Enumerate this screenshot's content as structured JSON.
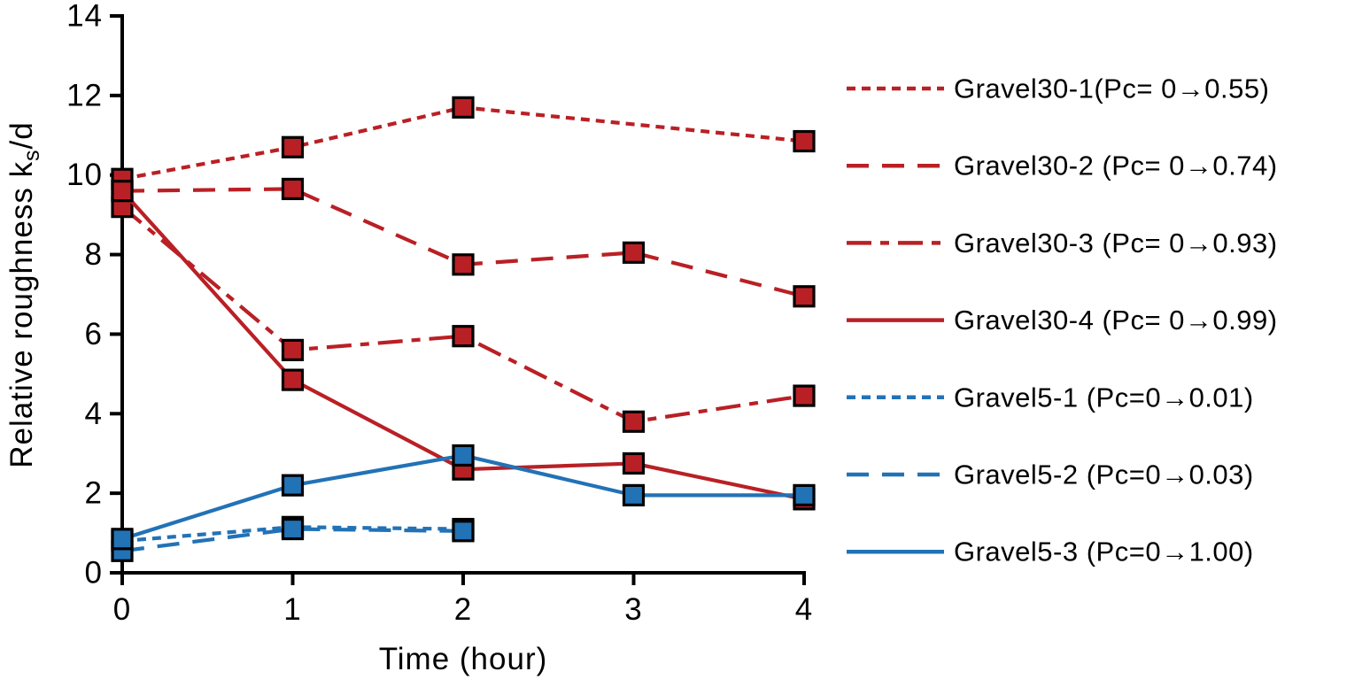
{
  "colors": {
    "red": "#B92025",
    "blue": "#2272B6",
    "axis": "#000000",
    "marker_border": "#000000",
    "background": "#FFFFFF"
  },
  "chart_data": {
    "type": "line",
    "title": "",
    "xlabel": "Time (hour)",
    "ylabel": "Relative roughness ks/d",
    "ylabel_parts": {
      "prefix": "Relative roughness k",
      "subscript": "s",
      "suffix": "/d"
    },
    "xlim": [
      0,
      4
    ],
    "ylim": [
      0,
      14
    ],
    "x_ticks": [
      0,
      1,
      2,
      3,
      4
    ],
    "y_ticks": [
      0,
      2,
      4,
      6,
      8,
      10,
      12,
      14
    ],
    "grid": false,
    "marker": "square",
    "legend_position": "right",
    "series": [
      {
        "name": "Gravel30-1",
        "label": "Gravel30-1(Pc= 0→0.55)",
        "color": "#B92025",
        "dash": "dotted",
        "x": [
          0,
          1,
          2,
          4
        ],
        "y": [
          9.9,
          10.7,
          11.7,
          10.85
        ]
      },
      {
        "name": "Gravel30-2",
        "label": "Gravel30-2 (Pc= 0→0.74)",
        "color": "#B92025",
        "dash": "dashed",
        "x": [
          0,
          1,
          2,
          3,
          4
        ],
        "y": [
          9.6,
          9.65,
          7.75,
          8.05,
          6.95
        ]
      },
      {
        "name": "Gravel30-3",
        "label": "Gravel30-3 (Pc= 0→0.93)",
        "color": "#B92025",
        "dash": "dashdot",
        "x": [
          0,
          1,
          2,
          3,
          4
        ],
        "y": [
          9.2,
          5.6,
          5.95,
          3.8,
          4.45
        ]
      },
      {
        "name": "Gravel30-4",
        "label": "Gravel30-4 (Pc= 0→0.99)",
        "color": "#B92025",
        "dash": "solid",
        "x": [
          0,
          1,
          2,
          3,
          4
        ],
        "y": [
          9.6,
          4.85,
          2.6,
          2.75,
          1.85
        ]
      },
      {
        "name": "Gravel5-1",
        "label": "Gravel5-1 (Pc=0→0.01)",
        "color": "#2272B6",
        "dash": "dotted",
        "x": [
          0,
          1,
          2
        ],
        "y": [
          0.8,
          1.15,
          1.1
        ]
      },
      {
        "name": "Gravel5-2",
        "label": "Gravel5-2 (Pc=0→0.03)",
        "color": "#2272B6",
        "dash": "dashed",
        "x": [
          0,
          1,
          2
        ],
        "y": [
          0.55,
          1.1,
          1.05
        ]
      },
      {
        "name": "Gravel5-3",
        "label": "Gravel5-3 (Pc=0→1.00)",
        "color": "#2272B6",
        "dash": "solid",
        "x": [
          0,
          1,
          2,
          3,
          4
        ],
        "y": [
          0.85,
          2.2,
          2.95,
          1.95,
          1.95
        ]
      }
    ]
  }
}
